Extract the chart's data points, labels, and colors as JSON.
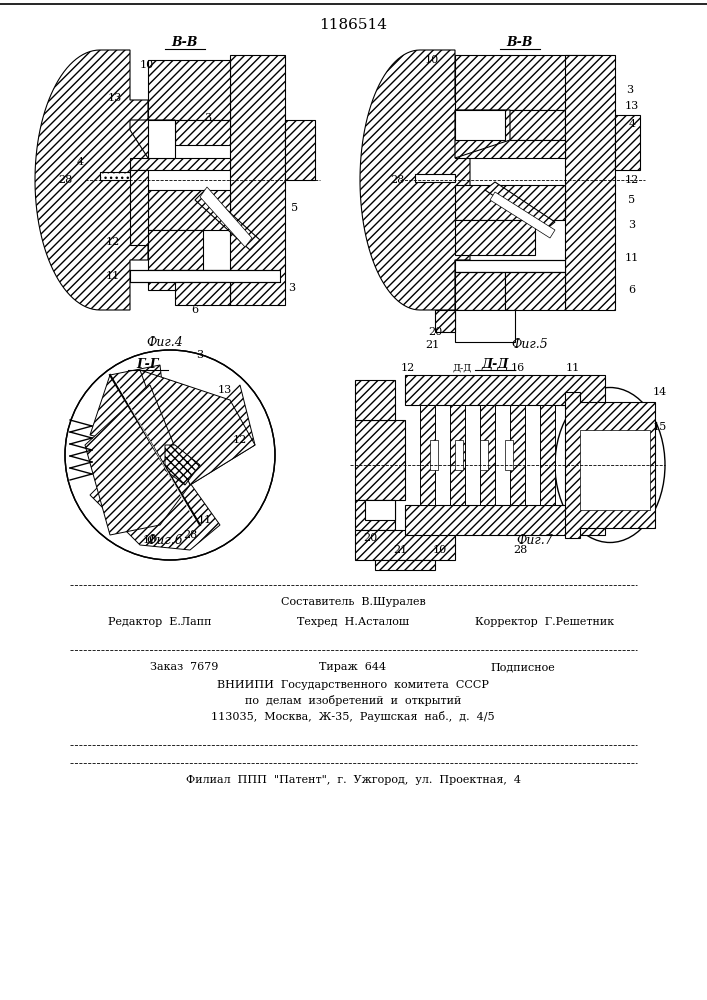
{
  "title": "1186514",
  "background_color": "#ffffff",
  "line_color": "#000000",
  "fig4_label": "В-В",
  "fig5_label": "В-В",
  "fig6_label": "Г-Г",
  "fig7_label": "Д-Д",
  "fig4_caption": "Фиг.4",
  "fig5_caption": "Фиг.5",
  "fig6_caption": "Фиг.6",
  "fig7_caption": "Фиг.7",
  "footer_line1": "Составитель  В.Шуралев",
  "footer_line2_left": "Редактор  Е.Лапп",
  "footer_line2_mid": "Техред  Н.Асталош",
  "footer_line2_right": "Корректор  Г.Решетник",
  "footer_line3_left": "Заказ  7679",
  "footer_line3_mid": "Тираж  644",
  "footer_line3_right": "Подписное",
  "footer_line4": "ВНИИПИ  Государственного  комитета  СССР",
  "footer_line5": "по  делам  изобретений  и  открытий",
  "footer_line6": "113035,  Москва,  Ж-35,  Раушская  наб.,  д.  4/5",
  "footer_line7": "Филиал  ППП  \"Патент\",  г.  Ужгород,  ул.  Проектная,  4"
}
